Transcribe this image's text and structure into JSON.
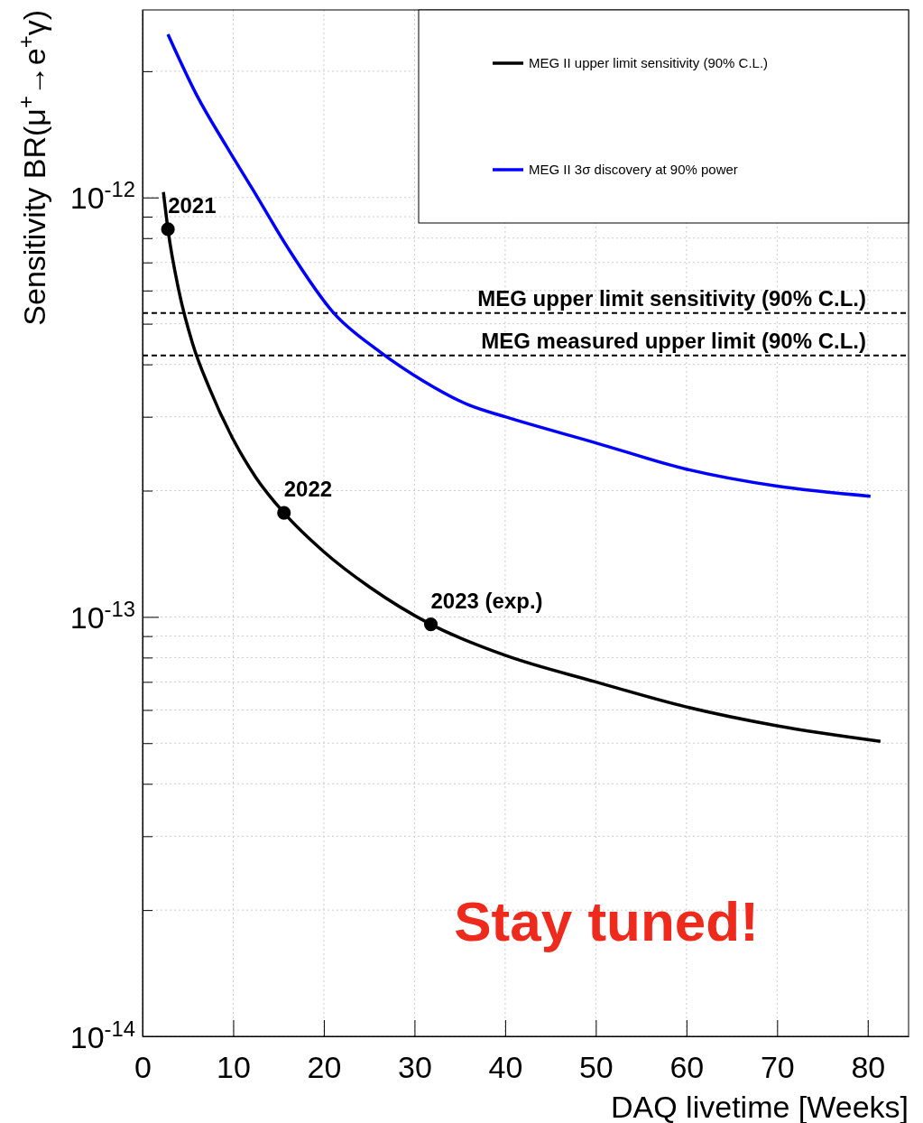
{
  "chart_data": {
    "type": "line",
    "xlabel": "DAQ livetime [Weeks]",
    "ylabel": "Sensitivity BR(μ$^{+}$→e$^{+}$γ)",
    "log": "y",
    "grid": true,
    "legend": "top right",
    "line_style": "solid",
    "xlim": [
      0,
      84.5
    ],
    "xticks": [
      0,
      10,
      20,
      30,
      40,
      50,
      60,
      70,
      80
    ],
    "ylim": [
      1e-14,
      2.8e-12
    ],
    "yticks": [
      {
        "value": 1e-14,
        "label": "10$^{-14}$"
      },
      {
        "value": 2e-14,
        "label": null
      },
      {
        "value": 3e-14,
        "label": null
      },
      {
        "value": 4e-14,
        "label": null
      },
      {
        "value": 5e-14,
        "label": null
      },
      {
        "value": 6e-14,
        "label": null
      },
      {
        "value": 7e-14,
        "label": null
      },
      {
        "value": 8e-14,
        "label": null
      },
      {
        "value": 9e-14,
        "label": null
      },
      {
        "value": 1e-13,
        "label": "10$^{-13}$"
      },
      {
        "value": 2e-13,
        "label": null
      },
      {
        "value": 3e-13,
        "label": null
      },
      {
        "value": 4e-13,
        "label": null
      },
      {
        "value": 5e-13,
        "label": null
      },
      {
        "value": 6e-13,
        "label": null
      },
      {
        "value": 7e-13,
        "label": null
      },
      {
        "value": 8e-13,
        "label": null
      },
      {
        "value": 9e-13,
        "label": null
      },
      {
        "value": 1e-12,
        "label": "10$^{-12}$"
      },
      {
        "value": 2e-12,
        "label": null
      }
    ],
    "series": [
      {
        "name": "MEG II upper limit sensitivity (90% C.L.)",
        "color": "#000000",
        "x": [
          2.3,
          2.8,
          4,
          5.5,
          7.4,
          10,
          12.5,
          15.6,
          20,
          25,
          31.8,
          40,
          50,
          60,
          70,
          81.4
        ],
        "values": [
          1.03e-12,
          8.4e-13,
          6e-13,
          4.5e-13,
          3.5e-13,
          2.65e-13,
          2.15e-13,
          1.77e-13,
          1.43e-13,
          1.18e-13,
          9.6e-14,
          8.1e-14,
          7e-14,
          6.1e-14,
          5.5e-14,
          5.05e-14
        ]
      },
      {
        "name": "MEG II 3σ discovery at 90% power",
        "color": "#0000ff",
        "x": [
          2.8,
          6,
          9.2,
          12.1,
          16,
          21.1,
          26.1,
          31,
          36,
          40,
          50,
          60,
          70,
          80.3
        ],
        "values": [
          2.45e-12,
          1.75e-12,
          1.33e-12,
          1.05e-12,
          7.6e-13,
          5.3e-13,
          4.3e-13,
          3.65e-13,
          3.2e-13,
          3e-13,
          2.6e-13,
          2.25e-13,
          2.05e-13,
          1.94e-13
        ]
      },
      {
        "type": "scatter",
        "marker": "circle",
        "color": "#000000",
        "x": [
          2.8,
          15.6,
          31.8
        ],
        "values": [
          8.4e-13,
          1.77e-13,
          9.6e-14
        ]
      }
    ],
    "ref_lines": [
      {
        "axis": "y",
        "value": 5.3e-13,
        "label": "MEG upper limit sensitivity (90% C.L.)",
        "line_style": "dashed",
        "color": "#000000"
      },
      {
        "axis": "y",
        "value": 4.2e-13,
        "label": "MEG measured upper limit (90% C.L.)",
        "line_style": "dashed",
        "color": "#000000"
      }
    ],
    "annotations": [
      {
        "text": "2021",
        "x": 2.8,
        "y": 8.4e-13
      },
      {
        "text": "2022",
        "x": 15.6,
        "y": 1.77e-13
      },
      {
        "text": "2023 (exp.)",
        "x": 31.8,
        "y": 9.6e-14
      },
      "Stay tuned!"
    ]
  }
}
